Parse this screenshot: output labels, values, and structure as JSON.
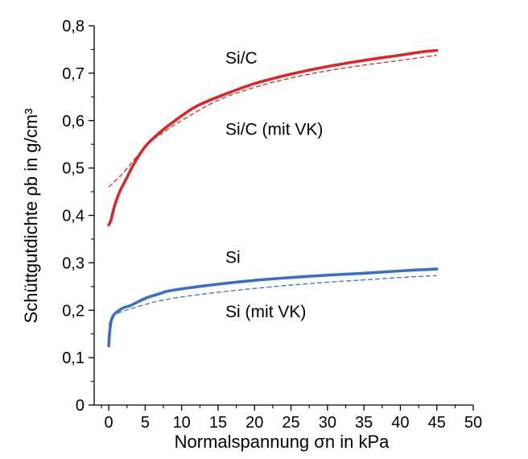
{
  "chart_data": {
    "type": "line",
    "xlabel": "Normalspannung σn in kPa",
    "ylabel": "Schüttgutdichte ρb in g/cm³",
    "xlim": [
      -2,
      50
    ],
    "ylim": [
      0,
      0.8
    ],
    "x_ticks": [
      "0",
      "5",
      "10",
      "15",
      "20",
      "25",
      "30",
      "35",
      "40",
      "45",
      "50"
    ],
    "y_ticks": [
      "0",
      "0,1",
      "0,2",
      "0,3",
      "0,4",
      "0,5",
      "0,6",
      "0,7",
      "0,8"
    ],
    "grid": false,
    "series": [
      {
        "name": "Si/C",
        "color": "#d42a2a",
        "style": "solid",
        "points": [
          [
            0,
            0.38
          ],
          [
            0.3,
            0.39
          ],
          [
            0.8,
            0.42
          ],
          [
            1.5,
            0.45
          ],
          [
            2.5,
            0.48
          ],
          [
            3.5,
            0.51
          ],
          [
            5,
            0.545
          ],
          [
            7,
            0.575
          ],
          [
            10,
            0.61
          ],
          [
            12,
            0.63
          ],
          [
            15,
            0.65
          ],
          [
            20,
            0.678
          ],
          [
            25,
            0.698
          ],
          [
            30,
            0.714
          ],
          [
            35,
            0.727
          ],
          [
            40,
            0.738
          ],
          [
            43,
            0.745
          ],
          [
            45,
            0.748
          ]
        ]
      },
      {
        "name": "Si/C (mit VK)",
        "color": "#d42a2a",
        "style": "dashed",
        "points": [
          [
            0,
            0.46
          ],
          [
            2,
            0.49
          ],
          [
            5,
            0.545
          ],
          [
            7,
            0.57
          ],
          [
            10,
            0.6
          ],
          [
            15,
            0.643
          ],
          [
            20,
            0.67
          ],
          [
            25,
            0.69
          ],
          [
            30,
            0.705
          ],
          [
            35,
            0.717
          ],
          [
            40,
            0.727
          ],
          [
            45,
            0.738
          ]
        ]
      },
      {
        "name": "Si",
        "color": "#3c6fbe",
        "style": "solid",
        "points": [
          [
            0,
            0.125
          ],
          [
            0.1,
            0.15
          ],
          [
            0.3,
            0.175
          ],
          [
            0.6,
            0.188
          ],
          [
            1,
            0.195
          ],
          [
            2,
            0.205
          ],
          [
            3,
            0.21
          ],
          [
            5,
            0.225
          ],
          [
            7,
            0.235
          ],
          [
            8,
            0.24
          ],
          [
            10,
            0.245
          ],
          [
            15,
            0.255
          ],
          [
            20,
            0.263
          ],
          [
            25,
            0.269
          ],
          [
            30,
            0.274
          ],
          [
            35,
            0.278
          ],
          [
            40,
            0.283
          ],
          [
            45,
            0.287
          ]
        ]
      },
      {
        "name": "Si (mit VK)",
        "color": "#3c6fbe",
        "style": "dashed",
        "points": [
          [
            0,
            0.17
          ],
          [
            0.5,
            0.185
          ],
          [
            1,
            0.192
          ],
          [
            2,
            0.198
          ],
          [
            3,
            0.203
          ],
          [
            5,
            0.212
          ],
          [
            7,
            0.22
          ],
          [
            10,
            0.228
          ],
          [
            15,
            0.238
          ],
          [
            20,
            0.246
          ],
          [
            25,
            0.253
          ],
          [
            30,
            0.259
          ],
          [
            35,
            0.264
          ],
          [
            40,
            0.269
          ],
          [
            45,
            0.273
          ]
        ]
      }
    ],
    "annotations": [
      {
        "text": "Si/C",
        "x": 16,
        "y": 0.72
      },
      {
        "text": "Si/C (mit VK)",
        "x": 16,
        "y": 0.57
      },
      {
        "text": "Si",
        "x": 16,
        "y": 0.3
      },
      {
        "text": "Si (mit VK)",
        "x": 16,
        "y": 0.185
      }
    ]
  }
}
